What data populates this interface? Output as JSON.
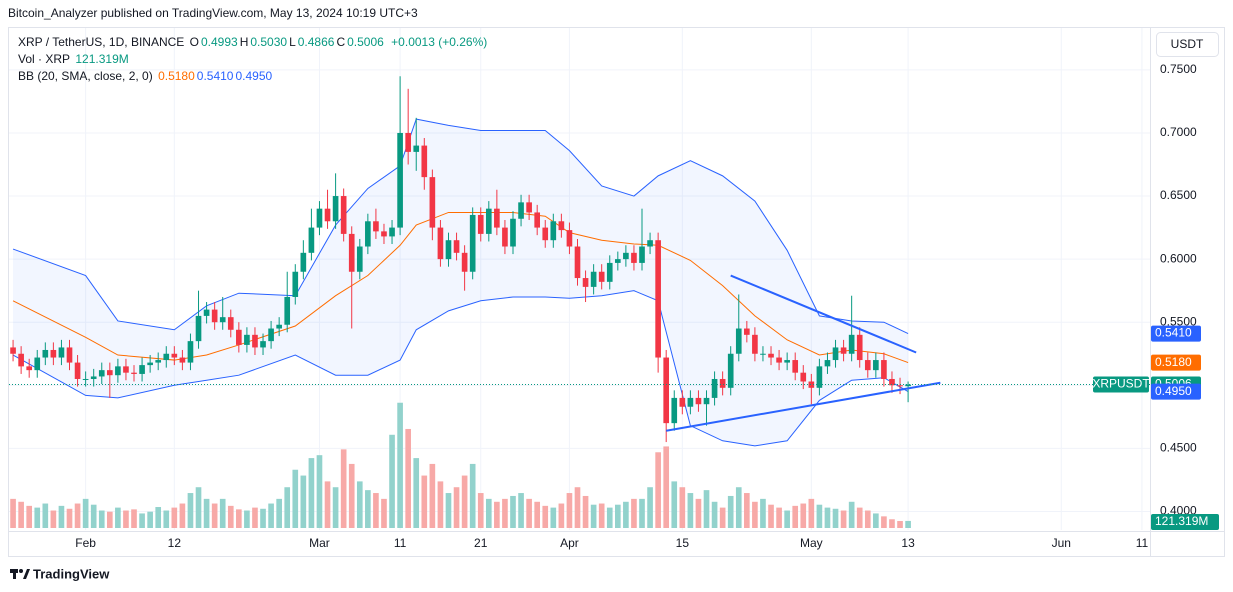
{
  "header": {
    "published": "Bitcoin_Analyzer published on TradingView.com, May 13, 2024 10:19 UTC+3",
    "brand": "TradingView"
  },
  "chart_data": {
    "type": "candlestick",
    "symbol": "XRP / TetherUS, 1D, BINANCE",
    "ohlc_legend": [
      {
        "label": "O",
        "text": "0.4993"
      },
      {
        "label": "H",
        "text": "0.5030"
      },
      {
        "label": "L",
        "text": "0.4866"
      },
      {
        "label": "C",
        "text": "0.5006"
      }
    ],
    "change": "+0.0013 (+0.26%)",
    "currency": "USDT",
    "x": [
      "2024-01-23",
      "2024-01-24",
      "2024-01-25",
      "2024-01-26",
      "2024-01-27",
      "2024-01-28",
      "2024-01-29",
      "2024-01-30",
      "2024-01-31",
      "2024-02-01",
      "2024-02-02",
      "2024-02-03",
      "2024-02-04",
      "2024-02-05",
      "2024-02-06",
      "2024-02-07",
      "2024-02-08",
      "2024-02-09",
      "2024-02-10",
      "2024-02-11",
      "2024-02-12",
      "2024-02-13",
      "2024-02-14",
      "2024-02-15",
      "2024-02-16",
      "2024-02-17",
      "2024-02-18",
      "2024-02-19",
      "2024-02-20",
      "2024-02-21",
      "2024-02-22",
      "2024-02-23",
      "2024-02-24",
      "2024-02-25",
      "2024-02-26",
      "2024-02-27",
      "2024-02-28",
      "2024-02-29",
      "2024-03-01",
      "2024-03-02",
      "2024-03-03",
      "2024-03-04",
      "2024-03-05",
      "2024-03-06",
      "2024-03-07",
      "2024-03-08",
      "2024-03-09",
      "2024-03-10",
      "2024-03-11",
      "2024-03-12",
      "2024-03-13",
      "2024-03-14",
      "2024-03-15",
      "2024-03-16",
      "2024-03-17",
      "2024-03-18",
      "2024-03-19",
      "2024-03-20",
      "2024-03-21",
      "2024-03-22",
      "2024-03-23",
      "2024-03-24",
      "2024-03-25",
      "2024-03-26",
      "2024-03-27",
      "2024-03-28",
      "2024-03-29",
      "2024-03-30",
      "2024-03-31",
      "2024-04-01",
      "2024-04-02",
      "2024-04-03",
      "2024-04-04",
      "2024-04-05",
      "2024-04-06",
      "2024-04-07",
      "2024-04-08",
      "2024-04-09",
      "2024-04-10",
      "2024-04-11",
      "2024-04-12",
      "2024-04-13",
      "2024-04-14",
      "2024-04-15",
      "2024-04-16",
      "2024-04-17",
      "2024-04-18",
      "2024-04-19",
      "2024-04-20",
      "2024-04-21",
      "2024-04-22",
      "2024-04-23",
      "2024-04-24",
      "2024-04-25",
      "2024-04-26",
      "2024-04-27",
      "2024-04-28",
      "2024-04-29",
      "2024-04-30",
      "2024-05-01",
      "2024-05-02",
      "2024-05-03",
      "2024-05-04",
      "2024-05-05",
      "2024-05-06",
      "2024-05-07",
      "2024-05-08",
      "2024-05-09",
      "2024-05-10",
      "2024-05-11",
      "2024-05-12",
      "2024-05-13"
    ],
    "open": [
      0.53,
      0.525,
      0.515,
      0.512,
      0.522,
      0.528,
      0.522,
      0.53,
      0.518,
      0.505,
      0.505,
      0.507,
      0.512,
      0.508,
      0.515,
      0.51,
      0.509,
      0.516,
      0.518,
      0.52,
      0.525,
      0.522,
      0.518,
      0.535,
      0.555,
      0.56,
      0.55,
      0.554,
      0.544,
      0.532,
      0.54,
      0.53,
      0.535,
      0.545,
      0.548,
      0.57,
      0.59,
      0.605,
      0.625,
      0.64,
      0.63,
      0.65,
      0.62,
      0.59,
      0.61,
      0.63,
      0.622,
      0.618,
      0.625,
      0.7,
      0.685,
      0.69,
      0.665,
      0.625,
      0.6,
      0.615,
      0.605,
      0.59,
      0.635,
      0.62,
      0.64,
      0.625,
      0.61,
      0.632,
      0.645,
      0.637,
      0.625,
      0.615,
      0.63,
      0.623,
      0.61,
      0.585,
      0.578,
      0.59,
      0.582,
      0.597,
      0.6,
      0.605,
      0.597,
      0.61,
      0.615,
      0.522,
      0.47,
      0.49,
      0.483,
      0.49,
      0.485,
      0.49,
      0.505,
      0.498,
      0.525,
      0.545,
      0.54,
      0.525,
      0.525,
      0.522,
      0.518,
      0.52,
      0.51,
      0.503,
      0.498,
      0.515,
      0.52,
      0.53,
      0.525,
      0.54,
      0.52,
      0.512,
      0.52,
      0.505,
      0.5,
      0.4993
    ],
    "high": [
      0.536,
      0.531,
      0.521,
      0.528,
      0.534,
      0.534,
      0.536,
      0.536,
      0.524,
      0.511,
      0.513,
      0.518,
      0.518,
      0.521,
      0.521,
      0.516,
      0.522,
      0.524,
      0.526,
      0.531,
      0.531,
      0.528,
      0.541,
      0.575,
      0.566,
      0.566,
      0.57,
      0.56,
      0.55,
      0.546,
      0.546,
      0.541,
      0.551,
      0.554,
      0.59,
      0.596,
      0.615,
      0.64,
      0.646,
      0.655,
      0.668,
      0.656,
      0.626,
      0.616,
      0.636,
      0.64,
      0.628,
      0.631,
      0.745,
      0.735,
      0.712,
      0.696,
      0.671,
      0.631,
      0.621,
      0.621,
      0.611,
      0.641,
      0.641,
      0.646,
      0.655,
      0.631,
      0.638,
      0.651,
      0.651,
      0.643,
      0.631,
      0.636,
      0.636,
      0.629,
      0.616,
      0.591,
      0.596,
      0.596,
      0.603,
      0.606,
      0.611,
      0.611,
      0.64,
      0.621,
      0.621,
      0.528,
      0.496,
      0.496,
      0.496,
      0.496,
      0.496,
      0.511,
      0.511,
      0.531,
      0.572,
      0.551,
      0.546,
      0.531,
      0.531,
      0.528,
      0.526,
      0.526,
      0.516,
      0.509,
      0.521,
      0.526,
      0.536,
      0.536,
      0.571,
      0.546,
      0.526,
      0.526,
      0.526,
      0.511,
      0.506,
      0.503
    ],
    "low": [
      0.519,
      0.509,
      0.506,
      0.506,
      0.516,
      0.516,
      0.516,
      0.512,
      0.499,
      0.499,
      0.499,
      0.501,
      0.49,
      0.502,
      0.504,
      0.503,
      0.503,
      0.51,
      0.512,
      0.514,
      0.516,
      0.512,
      0.512,
      0.529,
      0.549,
      0.544,
      0.544,
      0.538,
      0.526,
      0.526,
      0.524,
      0.524,
      0.529,
      0.539,
      0.542,
      0.564,
      0.584,
      0.599,
      0.619,
      0.624,
      0.624,
      0.614,
      0.545,
      0.584,
      0.604,
      0.616,
      0.612,
      0.612,
      0.619,
      0.675,
      0.67,
      0.655,
      0.615,
      0.594,
      0.594,
      0.599,
      0.575,
      0.584,
      0.614,
      0.614,
      0.619,
      0.604,
      0.604,
      0.626,
      0.631,
      0.619,
      0.609,
      0.609,
      0.617,
      0.604,
      0.579,
      0.566,
      0.572,
      0.576,
      0.576,
      0.591,
      0.594,
      0.591,
      0.591,
      0.604,
      0.51,
      0.455,
      0.464,
      0.477,
      0.477,
      0.479,
      0.468,
      0.484,
      0.492,
      0.492,
      0.519,
      0.534,
      0.519,
      0.519,
      0.516,
      0.512,
      0.512,
      0.504,
      0.497,
      0.485,
      0.492,
      0.509,
      0.514,
      0.519,
      0.519,
      0.514,
      0.506,
      0.506,
      0.499,
      0.494,
      0.493,
      0.4866
    ],
    "close": [
      0.525,
      0.515,
      0.512,
      0.522,
      0.528,
      0.522,
      0.53,
      0.518,
      0.505,
      0.505,
      0.507,
      0.512,
      0.508,
      0.515,
      0.51,
      0.509,
      0.516,
      0.518,
      0.52,
      0.525,
      0.522,
      0.518,
      0.535,
      0.555,
      0.56,
      0.55,
      0.554,
      0.544,
      0.532,
      0.54,
      0.53,
      0.535,
      0.545,
      0.548,
      0.57,
      0.59,
      0.605,
      0.625,
      0.64,
      0.63,
      0.65,
      0.62,
      0.59,
      0.61,
      0.63,
      0.622,
      0.618,
      0.625,
      0.7,
      0.685,
      0.69,
      0.665,
      0.625,
      0.6,
      0.615,
      0.605,
      0.59,
      0.635,
      0.62,
      0.64,
      0.625,
      0.61,
      0.632,
      0.645,
      0.637,
      0.625,
      0.615,
      0.63,
      0.623,
      0.61,
      0.585,
      0.578,
      0.59,
      0.582,
      0.597,
      0.6,
      0.605,
      0.597,
      0.61,
      0.615,
      0.522,
      0.47,
      0.49,
      0.483,
      0.49,
      0.485,
      0.49,
      0.505,
      0.498,
      0.525,
      0.545,
      0.54,
      0.525,
      0.525,
      0.522,
      0.518,
      0.52,
      0.51,
      0.503,
      0.498,
      0.515,
      0.52,
      0.53,
      0.525,
      0.54,
      0.52,
      0.512,
      0.52,
      0.505,
      0.5,
      0.4993,
      0.5006
    ],
    "up_color": "#089981",
    "down_color": "#f23645",
    "last_price_label": {
      "name": "XRPUSDT",
      "text": "0.5006"
    },
    "volume": {
      "name": "Vol · XRP",
      "text": "121.319M",
      "up_color": "#92d2cc",
      "down_color": "#f7a9a7",
      "vlim": [
        0,
        2300
      ],
      "values": [
        500,
        450,
        380,
        350,
        420,
        300,
        380,
        330,
        420,
        500,
        400,
        300,
        280,
        350,
        300,
        320,
        250,
        280,
        360,
        300,
        350,
        420,
        600,
        700,
        500,
        420,
        500,
        380,
        320,
        300,
        350,
        330,
        420,
        500,
        700,
        1000,
        900,
        1200,
        1250,
        800,
        700,
        1350,
        1100,
        800,
        650,
        600,
        500,
        1600,
        2150,
        1700,
        1200,
        900,
        1100,
        800,
        600,
        700,
        900,
        1100,
        600,
        500,
        450,
        500,
        550,
        600,
        500,
        450,
        380,
        350,
        420,
        600,
        700,
        550,
        400,
        420,
        350,
        400,
        450,
        500,
        500,
        700,
        1300,
        1400,
        800,
        700,
        600,
        500,
        650,
        450,
        350,
        550,
        700,
        600,
        450,
        500,
        400,
        350,
        300,
        380,
        420,
        500,
        400,
        350,
        330,
        300,
        450,
        350,
        300,
        250,
        200,
        150,
        120,
        121.319
      ]
    },
    "indicator": {
      "name": "BB (20, SMA, close, 2, 0)",
      "fill": "#2962ff",
      "x": [
        "2024-01-23",
        "2024-02-01",
        "2024-02-05",
        "2024-02-12",
        "2024-02-16",
        "2024-02-20",
        "2024-02-27",
        "2024-03-03",
        "2024-03-07",
        "2024-03-11",
        "2024-03-13",
        "2024-03-17",
        "2024-03-21",
        "2024-03-25",
        "2024-03-29",
        "2024-04-01",
        "2024-04-05",
        "2024-04-09",
        "2024-04-12",
        "2024-04-16",
        "2024-04-20",
        "2024-04-24",
        "2024-04-28",
        "2024-05-02",
        "2024-05-06",
        "2024-05-10",
        "2024-05-13"
      ],
      "series": [
        {
          "color": "#ff6d00",
          "price_label": "0.5180",
          "values": [
            0.567,
            0.538,
            0.524,
            0.52,
            0.524,
            0.532,
            0.547,
            0.571,
            0.587,
            0.611,
            0.627,
            0.637,
            0.637,
            0.637,
            0.634,
            0.621,
            0.615,
            0.612,
            0.611,
            0.599,
            0.579,
            0.555,
            0.536,
            0.524,
            0.528,
            0.525,
            0.518
          ]
        },
        {
          "color": "#2962ff",
          "price_label": "0.5410",
          "values": [
            0.608,
            0.587,
            0.551,
            0.544,
            0.563,
            0.573,
            0.571,
            0.627,
            0.656,
            0.674,
            0.711,
            0.706,
            0.702,
            0.702,
            0.702,
            0.686,
            0.658,
            0.65,
            0.666,
            0.678,
            0.666,
            0.646,
            0.607,
            0.555,
            0.551,
            0.55,
            0.541
          ]
        },
        {
          "color": "#2962ff",
          "price_label": "0.4950",
          "values": [
            0.524,
            0.492,
            0.49,
            0.5,
            0.504,
            0.508,
            0.524,
            0.508,
            0.508,
            0.52,
            0.544,
            0.559,
            0.567,
            0.57,
            0.57,
            0.569,
            0.571,
            0.575,
            0.567,
            0.468,
            0.456,
            0.452,
            0.456,
            0.488,
            0.504,
            0.506,
            0.495
          ]
        }
      ]
    },
    "trendlines": [
      {
        "color": "#2962ff",
        "x": [
          "2024-04-21",
          "2024-05-14"
        ],
        "y": [
          0.587,
          0.526
        ]
      },
      {
        "color": "#2962ff",
        "x": [
          "2024-04-13",
          "2024-05-17"
        ],
        "y": [
          0.464,
          0.502
        ]
      }
    ],
    "xlim": [
      "2024-01-22",
      "2024-06-12"
    ],
    "xticks": [
      {
        "value": "2024-02-01",
        "label": "Feb"
      },
      {
        "value": "2024-02-12",
        "label": "12"
      },
      {
        "value": "2024-03-01",
        "label": "Mar"
      },
      {
        "value": "2024-03-11",
        "label": "11"
      },
      {
        "value": "2024-03-21",
        "label": "21"
      },
      {
        "value": "2024-04-01",
        "label": "Apr"
      },
      {
        "value": "2024-04-15",
        "label": "15"
      },
      {
        "value": "2024-05-01",
        "label": "May"
      },
      {
        "value": "2024-05-13",
        "label": "13"
      },
      {
        "value": "2024-06-01",
        "label": "Jun"
      },
      {
        "value": "2024-06-11",
        "label": "11"
      }
    ],
    "ylim": [
      0.3853,
      0.7832
    ],
    "yticks": [
      {
        "value": 0.4,
        "label": "0.4000"
      },
      {
        "value": 0.45,
        "label": "0.4500"
      },
      {
        "value": 0.5,
        "label": "0.5000"
      },
      {
        "value": 0.55,
        "label": "0.5500"
      },
      {
        "value": 0.6,
        "label": "0.6000"
      },
      {
        "value": 0.65,
        "label": "0.6500"
      },
      {
        "value": 0.7,
        "label": "0.7000"
      },
      {
        "value": 0.75,
        "label": "0.7500"
      }
    ],
    "grid": true
  }
}
